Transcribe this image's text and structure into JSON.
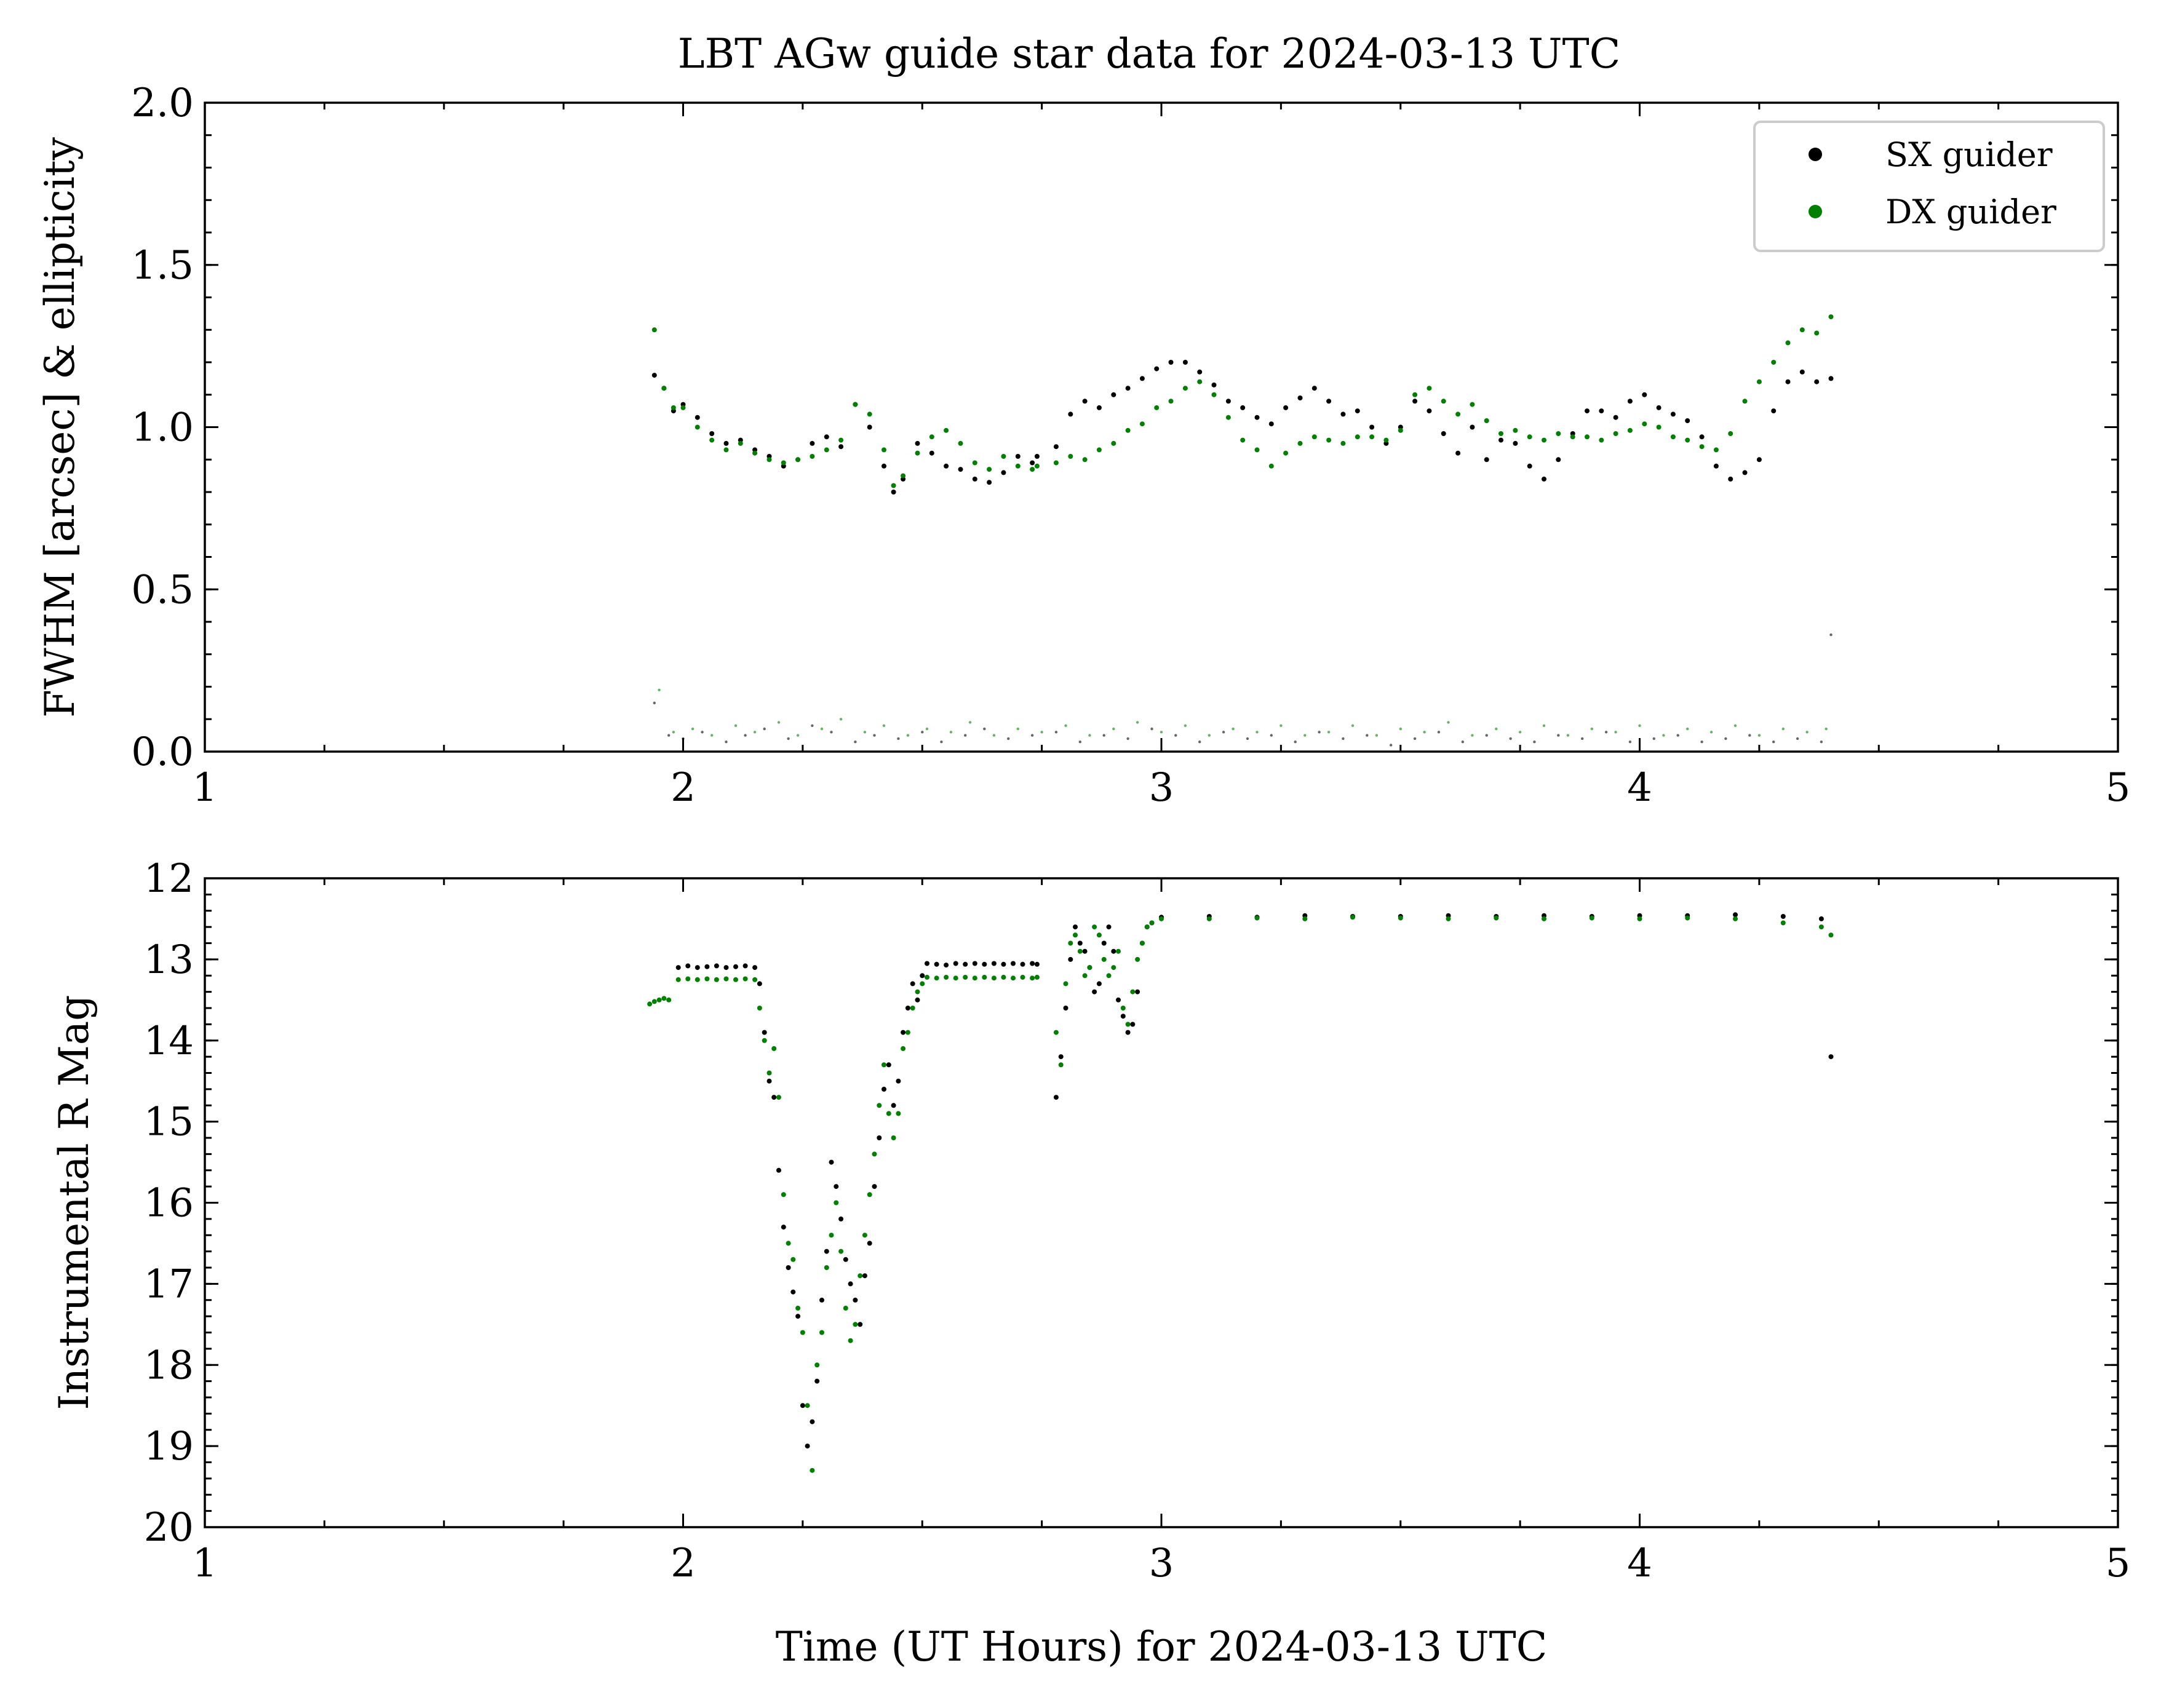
{
  "colors": {
    "sx": "#000000",
    "dx": "#008000",
    "background": "#ffffff"
  },
  "chart_data": [
    {
      "type": "scatter",
      "title": "LBT AGw guide star data for 2024-03-13 UTC",
      "xlabel": "",
      "ylabel": "FWHM [arcsec] & ellipticity",
      "xlim": [
        1,
        5
      ],
      "ylim": [
        0,
        2
      ],
      "xticks": [
        "1",
        "2",
        "3",
        "4",
        "5"
      ],
      "yticks": [
        "0.0",
        "0.5",
        "1.0",
        "1.5",
        "2.0"
      ],
      "grid": false,
      "legend": {
        "position": "top-right",
        "entries": [
          "SX guider",
          "DX guider"
        ]
      },
      "series": [
        {
          "name": "SX guider",
          "color": "#000000",
          "kind": "fwhm",
          "x": [
            1.94,
            1.96,
            1.98,
            2.0,
            2.03,
            2.06,
            2.09,
            2.12,
            2.15,
            2.18,
            2.21,
            2.24,
            2.27,
            2.3,
            2.33,
            2.36,
            2.39,
            2.42,
            2.44,
            2.46,
            2.49,
            2.52,
            2.55,
            2.58,
            2.61,
            2.64,
            2.67,
            2.7,
            2.73,
            2.74,
            2.78,
            2.81,
            2.84,
            2.87,
            2.9,
            2.93,
            2.96,
            2.99,
            3.02,
            3.05,
            3.08,
            3.11,
            3.14,
            3.17,
            3.2,
            3.23,
            3.26,
            3.29,
            3.32,
            3.35,
            3.38,
            3.41,
            3.44,
            3.47,
            3.5,
            3.53,
            3.56,
            3.59,
            3.62,
            3.65,
            3.68,
            3.71,
            3.74,
            3.77,
            3.8,
            3.83,
            3.86,
            3.89,
            3.92,
            3.95,
            3.98,
            4.01,
            4.04,
            4.07,
            4.1,
            4.13,
            4.16,
            4.19,
            4.22,
            4.25,
            4.28,
            4.31,
            4.34,
            4.37,
            4.4
          ],
          "y": [
            1.16,
            1.12,
            1.05,
            1.07,
            1.03,
            0.98,
            0.95,
            0.96,
            0.93,
            0.91,
            0.88,
            0.9,
            0.95,
            0.97,
            0.94,
            1.07,
            1.0,
            0.88,
            0.8,
            0.84,
            0.95,
            0.92,
            0.88,
            0.87,
            0.84,
            0.83,
            0.86,
            0.91,
            0.89,
            0.91,
            0.94,
            1.04,
            1.08,
            1.06,
            1.1,
            1.12,
            1.15,
            1.18,
            1.2,
            1.2,
            1.17,
            1.13,
            1.08,
            1.06,
            1.03,
            1.01,
            1.06,
            1.09,
            1.12,
            1.08,
            1.04,
            1.05,
            1.0,
            0.95,
            1.0,
            1.08,
            1.05,
            0.98,
            0.92,
            1.0,
            0.9,
            0.96,
            0.95,
            0.88,
            0.84,
            0.9,
            0.98,
            1.05,
            1.05,
            1.03,
            1.08,
            1.1,
            1.06,
            1.04,
            1.02,
            0.97,
            0.88,
            0.84,
            0.86,
            0.9,
            1.05,
            1.14,
            1.17,
            1.14,
            1.15
          ]
        },
        {
          "name": "DX guider",
          "color": "#008000",
          "kind": "fwhm",
          "x": [
            1.94,
            1.96,
            1.98,
            2.0,
            2.03,
            2.06,
            2.09,
            2.12,
            2.15,
            2.18,
            2.21,
            2.24,
            2.27,
            2.3,
            2.33,
            2.36,
            2.39,
            2.42,
            2.44,
            2.46,
            2.49,
            2.52,
            2.55,
            2.58,
            2.61,
            2.64,
            2.67,
            2.7,
            2.73,
            2.74,
            2.78,
            2.81,
            2.84,
            2.87,
            2.9,
            2.93,
            2.96,
            2.99,
            3.02,
            3.05,
            3.08,
            3.11,
            3.14,
            3.17,
            3.2,
            3.23,
            3.26,
            3.29,
            3.32,
            3.35,
            3.38,
            3.41,
            3.44,
            3.47,
            3.5,
            3.53,
            3.56,
            3.59,
            3.62,
            3.65,
            3.68,
            3.71,
            3.74,
            3.77,
            3.8,
            3.83,
            3.86,
            3.89,
            3.92,
            3.95,
            3.98,
            4.01,
            4.04,
            4.07,
            4.1,
            4.13,
            4.16,
            4.19,
            4.22,
            4.25,
            4.28,
            4.31,
            4.34,
            4.37,
            4.4
          ],
          "y": [
            1.3,
            1.12,
            1.06,
            1.06,
            1.0,
            0.96,
            0.93,
            0.95,
            0.92,
            0.9,
            0.89,
            0.9,
            0.91,
            0.93,
            0.96,
            1.07,
            1.04,
            0.93,
            0.82,
            0.85,
            0.92,
            0.97,
            0.99,
            0.95,
            0.89,
            0.87,
            0.91,
            0.88,
            0.87,
            0.88,
            0.89,
            0.91,
            0.9,
            0.93,
            0.95,
            0.99,
            1.01,
            1.06,
            1.08,
            1.12,
            1.14,
            1.1,
            1.03,
            0.96,
            0.93,
            0.88,
            0.92,
            0.95,
            0.97,
            0.96,
            0.95,
            0.97,
            0.97,
            0.96,
            0.99,
            1.1,
            1.12,
            1.08,
            1.04,
            1.07,
            1.02,
            0.98,
            0.99,
            0.97,
            0.96,
            0.98,
            0.97,
            0.97,
            0.96,
            0.98,
            0.99,
            1.01,
            1.0,
            0.97,
            0.96,
            0.94,
            0.93,
            0.98,
            1.08,
            1.14,
            1.2,
            1.26,
            1.3,
            1.29,
            1.34
          ]
        },
        {
          "name": "SX guider",
          "color": "#000000",
          "kind": "ellipticity",
          "x": [
            1.94,
            1.97,
            2.0,
            2.04,
            2.09,
            2.13,
            2.17,
            2.22,
            2.27,
            2.31,
            2.36,
            2.4,
            2.45,
            2.5,
            2.54,
            2.59,
            2.63,
            2.68,
            2.73,
            2.78,
            2.83,
            2.88,
            2.93,
            2.98,
            3.03,
            3.08,
            3.13,
            3.18,
            3.23,
            3.28,
            3.33,
            3.38,
            3.43,
            3.48,
            3.53,
            3.58,
            3.63,
            3.68,
            3.73,
            3.78,
            3.83,
            3.88,
            3.93,
            3.98,
            4.03,
            4.08,
            4.13,
            4.18,
            4.23,
            4.28,
            4.33,
            4.38,
            4.4
          ],
          "y": [
            0.15,
            0.05,
            0.04,
            0.06,
            0.03,
            0.05,
            0.07,
            0.04,
            0.08,
            0.06,
            0.03,
            0.05,
            0.04,
            0.06,
            0.03,
            0.05,
            0.07,
            0.04,
            0.05,
            0.06,
            0.03,
            0.05,
            0.04,
            0.07,
            0.05,
            0.03,
            0.06,
            0.04,
            0.05,
            0.03,
            0.06,
            0.04,
            0.05,
            0.02,
            0.04,
            0.06,
            0.03,
            0.05,
            0.04,
            0.03,
            0.05,
            0.04,
            0.06,
            0.03,
            0.04,
            0.05,
            0.03,
            0.04,
            0.05,
            0.03,
            0.04,
            0.03,
            0.36
          ]
        },
        {
          "name": "DX guider",
          "color": "#008000",
          "kind": "ellipticity",
          "x": [
            1.95,
            1.98,
            2.02,
            2.06,
            2.11,
            2.15,
            2.2,
            2.24,
            2.29,
            2.33,
            2.38,
            2.42,
            2.47,
            2.51,
            2.56,
            2.6,
            2.65,
            2.7,
            2.75,
            2.8,
            2.85,
            2.9,
            2.95,
            3.0,
            3.05,
            3.1,
            3.15,
            3.2,
            3.25,
            3.3,
            3.35,
            3.4,
            3.45,
            3.5,
            3.55,
            3.6,
            3.65,
            3.7,
            3.75,
            3.8,
            3.85,
            3.9,
            3.95,
            4.0,
            4.05,
            4.1,
            4.15,
            4.2,
            4.25,
            4.3,
            4.35,
            4.39
          ],
          "y": [
            0.19,
            0.06,
            0.07,
            0.05,
            0.08,
            0.06,
            0.09,
            0.05,
            0.07,
            0.1,
            0.06,
            0.08,
            0.05,
            0.07,
            0.06,
            0.09,
            0.05,
            0.07,
            0.06,
            0.08,
            0.05,
            0.07,
            0.09,
            0.06,
            0.08,
            0.05,
            0.07,
            0.06,
            0.08,
            0.05,
            0.06,
            0.08,
            0.05,
            0.07,
            0.06,
            0.09,
            0.05,
            0.07,
            0.06,
            0.08,
            0.05,
            0.07,
            0.06,
            0.08,
            0.05,
            0.07,
            0.06,
            0.08,
            0.05,
            0.07,
            0.06,
            0.07
          ]
        }
      ]
    },
    {
      "type": "scatter",
      "title": "",
      "xlabel": "Time (UT Hours) for 2024-03-13 UTC",
      "ylabel": "Instrumental R Mag",
      "xlim": [
        1,
        5
      ],
      "ylim": [
        20,
        12
      ],
      "inverted_y": true,
      "xticks": [
        "1",
        "2",
        "3",
        "4",
        "5"
      ],
      "yticks": [
        "12",
        "13",
        "14",
        "15",
        "16",
        "17",
        "18",
        "19",
        "20"
      ],
      "grid": false,
      "series": [
        {
          "name": "SX guider",
          "color": "#000000",
          "x": [
            1.99,
            2.01,
            2.03,
            2.05,
            2.07,
            2.09,
            2.11,
            2.13,
            2.15,
            2.16,
            2.17,
            2.18,
            2.19,
            2.2,
            2.21,
            2.22,
            2.23,
            2.24,
            2.25,
            2.26,
            2.27,
            2.28,
            2.29,
            2.3,
            2.31,
            2.32,
            2.33,
            2.34,
            2.35,
            2.36,
            2.37,
            2.38,
            2.39,
            2.4,
            2.41,
            2.42,
            2.43,
            2.44,
            2.45,
            2.46,
            2.47,
            2.48,
            2.49,
            2.5,
            2.51,
            2.53,
            2.55,
            2.57,
            2.59,
            2.61,
            2.63,
            2.65,
            2.67,
            2.69,
            2.71,
            2.73,
            2.74,
            2.78,
            2.79,
            2.8,
            2.81,
            2.82,
            2.83,
            2.84,
            2.85,
            2.86,
            2.87,
            2.88,
            2.89,
            2.9,
            2.91,
            2.92,
            2.93,
            2.94,
            2.95,
            2.96,
            2.97,
            2.98,
            3.0,
            3.1,
            3.2,
            3.3,
            3.4,
            3.5,
            3.6,
            3.7,
            3.8,
            3.9,
            4.0,
            4.1,
            4.2,
            4.3,
            4.38,
            4.4
          ],
          "y": [
            13.1,
            13.08,
            13.1,
            13.09,
            13.08,
            13.1,
            13.09,
            13.08,
            13.1,
            13.3,
            13.9,
            14.5,
            14.7,
            15.6,
            16.3,
            16.8,
            17.1,
            17.4,
            18.5,
            19.0,
            18.7,
            18.2,
            17.2,
            16.6,
            15.5,
            15.8,
            16.2,
            16.7,
            17.0,
            17.2,
            17.5,
            16.9,
            16.5,
            15.8,
            15.2,
            14.6,
            14.3,
            14.8,
            14.5,
            13.9,
            13.6,
            13.3,
            13.5,
            13.2,
            13.05,
            13.06,
            13.07,
            13.05,
            13.06,
            13.05,
            13.06,
            13.05,
            13.06,
            13.05,
            13.06,
            13.05,
            13.06,
            14.7,
            14.2,
            13.6,
            13.0,
            12.6,
            12.8,
            12.9,
            13.1,
            13.4,
            13.3,
            12.8,
            12.6,
            12.9,
            13.5,
            13.7,
            13.9,
            13.8,
            13.4,
            12.8,
            12.6,
            12.55,
            12.48,
            12.47,
            12.48,
            12.46,
            12.47,
            12.47,
            12.46,
            12.47,
            12.46,
            12.47,
            12.46,
            12.46,
            12.45,
            12.47,
            12.5,
            14.2
          ]
        },
        {
          "name": "DX guider",
          "color": "#008000",
          "x": [
            1.93,
            1.94,
            1.95,
            1.96,
            1.97,
            1.99,
            2.01,
            2.03,
            2.05,
            2.07,
            2.09,
            2.11,
            2.13,
            2.15,
            2.16,
            2.17,
            2.18,
            2.19,
            2.2,
            2.21,
            2.22,
            2.23,
            2.24,
            2.25,
            2.26,
            2.27,
            2.28,
            2.29,
            2.3,
            2.31,
            2.32,
            2.33,
            2.34,
            2.35,
            2.36,
            2.37,
            2.38,
            2.39,
            2.4,
            2.41,
            2.42,
            2.43,
            2.44,
            2.45,
            2.46,
            2.47,
            2.48,
            2.49,
            2.5,
            2.51,
            2.53,
            2.55,
            2.57,
            2.59,
            2.61,
            2.63,
            2.65,
            2.67,
            2.69,
            2.71,
            2.73,
            2.74,
            2.78,
            2.79,
            2.8,
            2.81,
            2.82,
            2.83,
            2.84,
            2.85,
            2.86,
            2.87,
            2.88,
            2.89,
            2.9,
            2.91,
            2.92,
            2.93,
            2.94,
            2.95,
            2.96,
            2.97,
            2.98,
            3.0,
            3.1,
            3.2,
            3.3,
            3.4,
            3.5,
            3.6,
            3.7,
            3.8,
            3.9,
            4.0,
            4.1,
            4.2,
            4.3,
            4.38,
            4.4
          ],
          "y": [
            13.55,
            13.52,
            13.5,
            13.48,
            13.5,
            13.25,
            13.24,
            13.25,
            13.24,
            13.25,
            13.24,
            13.25,
            13.24,
            13.25,
            13.6,
            14.0,
            14.4,
            14.1,
            14.7,
            15.9,
            16.5,
            16.7,
            17.3,
            17.6,
            18.5,
            19.3,
            18.0,
            17.6,
            16.8,
            16.4,
            16.0,
            16.6,
            17.3,
            17.7,
            17.5,
            16.9,
            16.4,
            15.9,
            15.4,
            14.8,
            14.3,
            14.9,
            15.2,
            14.9,
            14.1,
            13.9,
            13.6,
            13.4,
            13.3,
            13.22,
            13.23,
            13.22,
            13.23,
            13.22,
            13.23,
            13.22,
            13.23,
            13.22,
            13.23,
            13.22,
            13.23,
            13.22,
            13.9,
            14.3,
            13.3,
            12.8,
            12.7,
            12.9,
            13.2,
            13.1,
            12.6,
            12.7,
            13.0,
            13.2,
            13.1,
            12.9,
            13.6,
            13.8,
            13.4,
            13.0,
            12.8,
            12.6,
            12.55,
            12.5,
            12.5,
            12.49,
            12.5,
            12.48,
            12.49,
            12.5,
            12.49,
            12.5,
            12.49,
            12.5,
            12.49,
            12.5,
            12.55,
            12.6,
            12.7
          ]
        }
      ]
    }
  ]
}
